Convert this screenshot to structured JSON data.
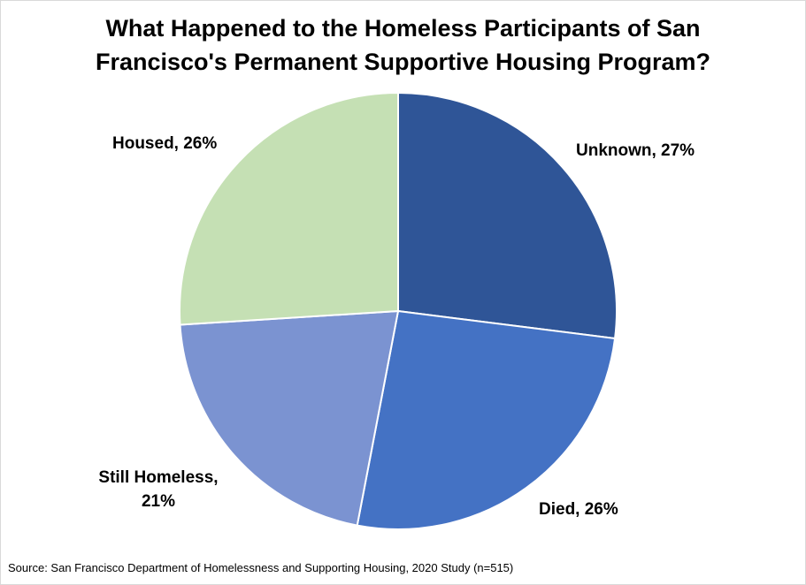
{
  "chart_data": {
    "type": "pie",
    "title_lines": [
      "What Happened to the Homeless Participants of San",
      "Francisco's Permanent Supportive Housing Program?"
    ],
    "slices": [
      {
        "label": "Unknown, 27%",
        "category": "Unknown",
        "value": 27,
        "color": "#2f5597"
      },
      {
        "label": "Died, 26%",
        "category": "Died",
        "value": 26,
        "color": "#4472c4"
      },
      {
        "label_lines": [
          "Still Homeless,",
          "21%"
        ],
        "category": "Still Homeless",
        "value": 21,
        "color": "#7b93d1"
      },
      {
        "label": "Housed, 26%",
        "category": "Housed",
        "value": 26,
        "color": "#c5e0b4"
      }
    ],
    "start_angle_deg": 0,
    "direction": "clockwise",
    "slice_border_color": "#ffffff",
    "legend": "none"
  },
  "source": "Source: San Francisco Department of Homelessness and Supporting Housing, 2020 Study (n=515)"
}
